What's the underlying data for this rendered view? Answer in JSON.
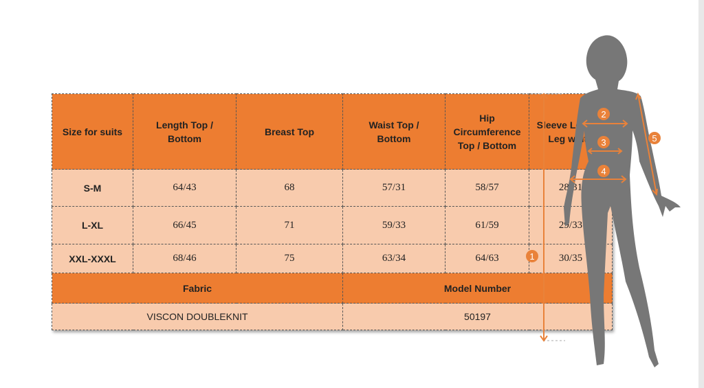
{
  "headers": [
    "Size for suits",
    "Length Top / Bottom",
    "Breast Top",
    "Waist Top / Bottom",
    "Hip Circumference Top / Bottom",
    "Sleeve Length/ Leg width"
  ],
  "rows": [
    [
      "S-M",
      "64/43",
      "68",
      "57/31",
      "58/57",
      "28/31"
    ],
    [
      "L-XL",
      "66/45",
      "71",
      "59/33",
      "61/59",
      "29/33"
    ],
    [
      "XXL-XXXL",
      "68/46",
      "75",
      "63/34",
      "64/63",
      "30/35"
    ]
  ],
  "fabric": {
    "label": "Fabric",
    "value": "VISCON DOUBLEKNIT"
  },
  "model": {
    "label": "Model Number",
    "value": "50197"
  },
  "figure": {
    "markers": [
      "1",
      "2",
      "3",
      "4",
      "5"
    ]
  },
  "colors": {
    "header": "#ed7d31",
    "row": "#f8cbad",
    "silhouette": "#777777"
  }
}
